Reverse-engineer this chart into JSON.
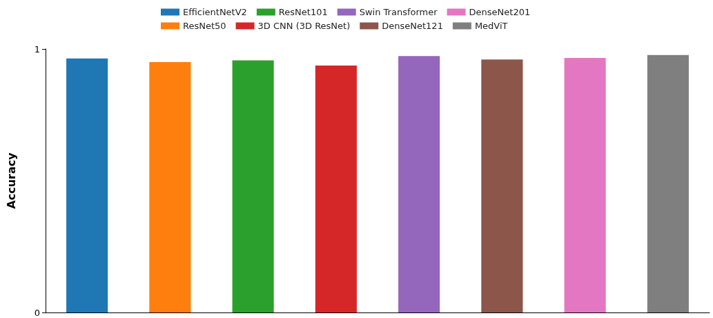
{
  "chart_data": {
    "type": "bar",
    "ylabel": "Accuracy",
    "categories": [
      null,
      null,
      null,
      null,
      null,
      null,
      null,
      null
    ],
    "series": [
      {
        "name": "EfficientNetV2",
        "color": "#1f77b4",
        "values": [
          0.964,
          null,
          null,
          null,
          null,
          null,
          null,
          null
        ]
      },
      {
        "name": "ResNet50",
        "color": "#ff7f0e",
        "values": [
          null,
          0.95,
          null,
          null,
          null,
          null,
          null,
          null
        ]
      },
      {
        "name": "ResNet101",
        "color": "#2ca02c",
        "values": [
          null,
          null,
          0.957,
          null,
          null,
          null,
          null,
          null
        ]
      },
      {
        "name": "3D CNN (3D ResNet)",
        "color": "#d62728",
        "values": [
          null,
          null,
          null,
          0.937,
          null,
          null,
          null,
          null
        ]
      },
      {
        "name": "Swin Transformer",
        "color": "#9467bd",
        "values": [
          null,
          null,
          null,
          null,
          0.973,
          null,
          null,
          null
        ]
      },
      {
        "name": "DenseNet121",
        "color": "#8c564b",
        "values": [
          null,
          null,
          null,
          null,
          null,
          0.96,
          null,
          null
        ]
      },
      {
        "name": "DenseNet201",
        "color": "#e377c2",
        "values": [
          null,
          null,
          null,
          null,
          null,
          null,
          0.966,
          null
        ]
      },
      {
        "name": "MedViT",
        "color": "#7f7f7f",
        "values": [
          null,
          null,
          null,
          null,
          null,
          null,
          null,
          0.977
        ]
      }
    ],
    "ylim": [
      0,
      1
    ],
    "yticks": [
      0,
      1
    ],
    "grid": false,
    "legend": "top"
  }
}
